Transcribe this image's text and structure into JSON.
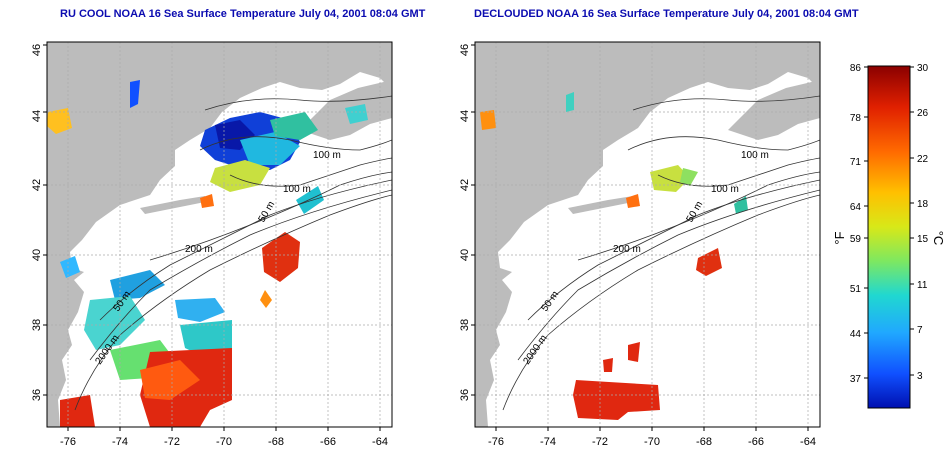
{
  "panels": [
    {
      "title": "RU COOL NOAA 16 Sea Surface Temperature July 04, 2001 08:04 GMT",
      "contour_labels": [
        "100 m",
        "100 m",
        "50 m",
        "200 m",
        "50 m",
        "2000 m"
      ]
    },
    {
      "title": "DECLOUDED NOAA 16 Sea Surface Temperature July 04, 2001 08:04 GMT",
      "contour_labels": [
        "100 m",
        "100 m",
        "50 m",
        "200 m",
        "50 m",
        "2000 m"
      ]
    }
  ],
  "axes": {
    "lat_ticks": [
      "36",
      "38",
      "40",
      "42",
      "44",
      "46"
    ],
    "lon_ticks": [
      "-76",
      "-74",
      "-72",
      "-70",
      "-68",
      "-66",
      "-64"
    ]
  },
  "colorbar": {
    "fahrenheit_ticks": [
      "86",
      "78",
      "71",
      "64",
      "59",
      "51",
      "44",
      "37"
    ],
    "celsius_ticks": [
      "30",
      "26",
      "22",
      "18",
      "15",
      "11",
      "7",
      "3"
    ],
    "fahrenheit_unit": "°F",
    "celsius_unit": "°C",
    "colors": [
      "#8b0000",
      "#e02000",
      "#ff6a00",
      "#ffc000",
      "#d8e818",
      "#7ee860",
      "#20d8d0",
      "#20a8ff",
      "#1050ff",
      "#0010b0"
    ]
  }
}
